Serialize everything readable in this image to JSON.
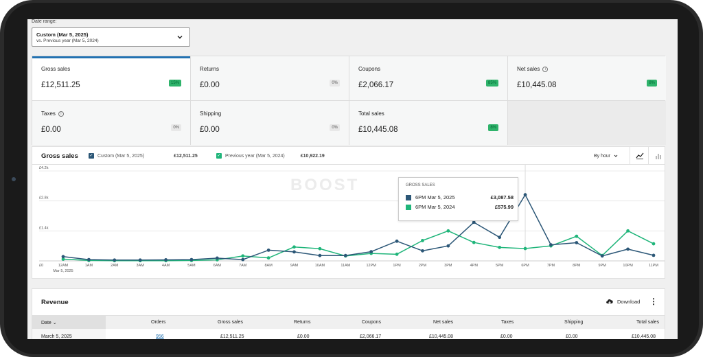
{
  "date_range": {
    "label": "Date range:",
    "main": "Custom (Mar 5, 2025)",
    "sub": "vs. Previous year (Mar 5, 2024)"
  },
  "cards": [
    {
      "label": "Gross sales",
      "value": "£12,511.25",
      "delta": "15%",
      "positive": true,
      "info": false
    },
    {
      "label": "Returns",
      "value": "£0.00",
      "delta": "0%",
      "positive": false,
      "info": false
    },
    {
      "label": "Coupons",
      "value": "£2,066.17",
      "delta": "85%",
      "positive": true,
      "info": false
    },
    {
      "label": "Net sales",
      "value": "£10,445.08",
      "delta": "8%",
      "positive": true,
      "info": true
    },
    {
      "label": "Taxes",
      "value": "£0.00",
      "delta": "0%",
      "positive": false,
      "info": true
    },
    {
      "label": "Shipping",
      "value": "£0.00",
      "delta": "0%",
      "positive": false,
      "info": false
    },
    {
      "label": "Total sales",
      "value": "£10,445.08",
      "delta": "8%",
      "positive": true,
      "info": false
    }
  ],
  "chart": {
    "title": "Gross sales",
    "legend_current": "Custom (Mar 5, 2025)",
    "legend_current_value": "£12,511.25",
    "legend_previous": "Previous year (Mar 5, 2024)",
    "legend_previous_value": "£10,922.19",
    "interval": "By hour",
    "watermark": "BOOST",
    "tooltip": {
      "title": "GROSS SALES",
      "row1_label": "6PM Mar 5, 2025",
      "row1_value": "£3,087.58",
      "row2_label": "6PM Mar 5, 2024",
      "row2_value": "£575.99"
    }
  },
  "chart_data": {
    "type": "line",
    "title": "Gross sales",
    "x": [
      "12AM",
      "1AM",
      "2AM",
      "3AM",
      "4AM",
      "5AM",
      "6AM",
      "7AM",
      "8AM",
      "9AM",
      "10AM",
      "11AM",
      "12PM",
      "1PM",
      "2PM",
      "3PM",
      "4PM",
      "5PM",
      "6PM",
      "7PM",
      "8PM",
      "9PM",
      "10PM",
      "11PM"
    ],
    "x_sublabel": "Mar 5, 2025",
    "yticks": [
      "£0",
      "£1.4k",
      "£2.8k",
      "£4.2k"
    ],
    "ylim": [
      0,
      4200
    ],
    "series": [
      {
        "name": "Custom (Mar 5, 2025)",
        "color": "#2c5777",
        "values": [
          200,
          60,
          40,
          40,
          50,
          60,
          130,
          60,
          500,
          420,
          250,
          250,
          430,
          920,
          470,
          700,
          1800,
          1100,
          3087.58,
          750,
          850,
          230,
          550,
          260
        ]
      },
      {
        "name": "Previous year (Mar 5, 2024)",
        "color": "#1fb57a",
        "values": [
          80,
          20,
          10,
          10,
          10,
          20,
          50,
          230,
          140,
          650,
          570,
          230,
          350,
          310,
          950,
          1400,
          860,
          630,
          575.99,
          700,
          1150,
          250,
          1400,
          800
        ]
      }
    ],
    "grid": true
  },
  "revenue": {
    "title": "Revenue",
    "download_label": "Download",
    "columns": [
      "Date",
      "Orders",
      "Gross sales",
      "Returns",
      "Coupons",
      "Net sales",
      "Taxes",
      "Shipping",
      "Total sales"
    ],
    "row": {
      "date": "March 5, 2025",
      "orders": "956",
      "gross": "£12,511.25",
      "returns": "£0.00",
      "coupons": "£2,066.17",
      "net": "£10,445.08",
      "taxes": "£0.00",
      "shipping": "£0.00",
      "total": "£10,445.08"
    }
  },
  "colors": {
    "accent": "#2271b1",
    "current": "#2c5777",
    "previous": "#1fb57a",
    "positive": "#2fb36b"
  }
}
